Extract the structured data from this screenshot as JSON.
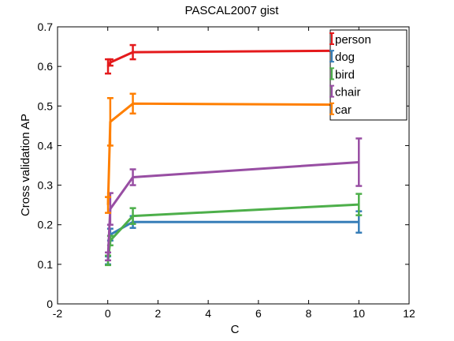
{
  "chart_data": {
    "type": "line",
    "title": "PASCAL2007 gist",
    "xlabel": "C",
    "ylabel": "Cross validation AP",
    "xlim": [
      -2,
      12
    ],
    "ylim": [
      0,
      0.7
    ],
    "xticks": [
      -2,
      0,
      2,
      4,
      6,
      8,
      10,
      12
    ],
    "yticks": [
      0,
      0.1,
      0.2,
      0.3,
      0.4,
      0.5,
      0.6,
      0.7
    ],
    "grid": false,
    "legend_position": "top-right",
    "x": [
      0.01,
      0.1,
      1,
      10
    ],
    "series": [
      {
        "name": "person",
        "color": "#e41a1c",
        "values": [
          0.6,
          0.61,
          0.636,
          0.64
        ],
        "err": [
          0.018,
          0.008,
          0.018,
          0.006
        ]
      },
      {
        "name": "dog",
        "color": "#377eb8",
        "values": [
          0.11,
          0.175,
          0.207,
          0.207
        ],
        "err": [
          0.01,
          0.015,
          0.015,
          0.027
        ]
      },
      {
        "name": "bird",
        "color": "#4daf4a",
        "values": [
          0.11,
          0.16,
          0.222,
          0.251
        ],
        "err": [
          0.012,
          0.012,
          0.02,
          0.027
        ]
      },
      {
        "name": "chair",
        "color": "#984ea3",
        "values": [
          0.12,
          0.24,
          0.32,
          0.358
        ],
        "err": [
          0.01,
          0.04,
          0.02,
          0.06
        ]
      },
      {
        "name": "car",
        "color": "#ff7f00",
        "values": [
          0.25,
          0.46,
          0.506,
          0.503
        ],
        "err": [
          0.02,
          0.06,
          0.025,
          0.025
        ]
      }
    ]
  }
}
